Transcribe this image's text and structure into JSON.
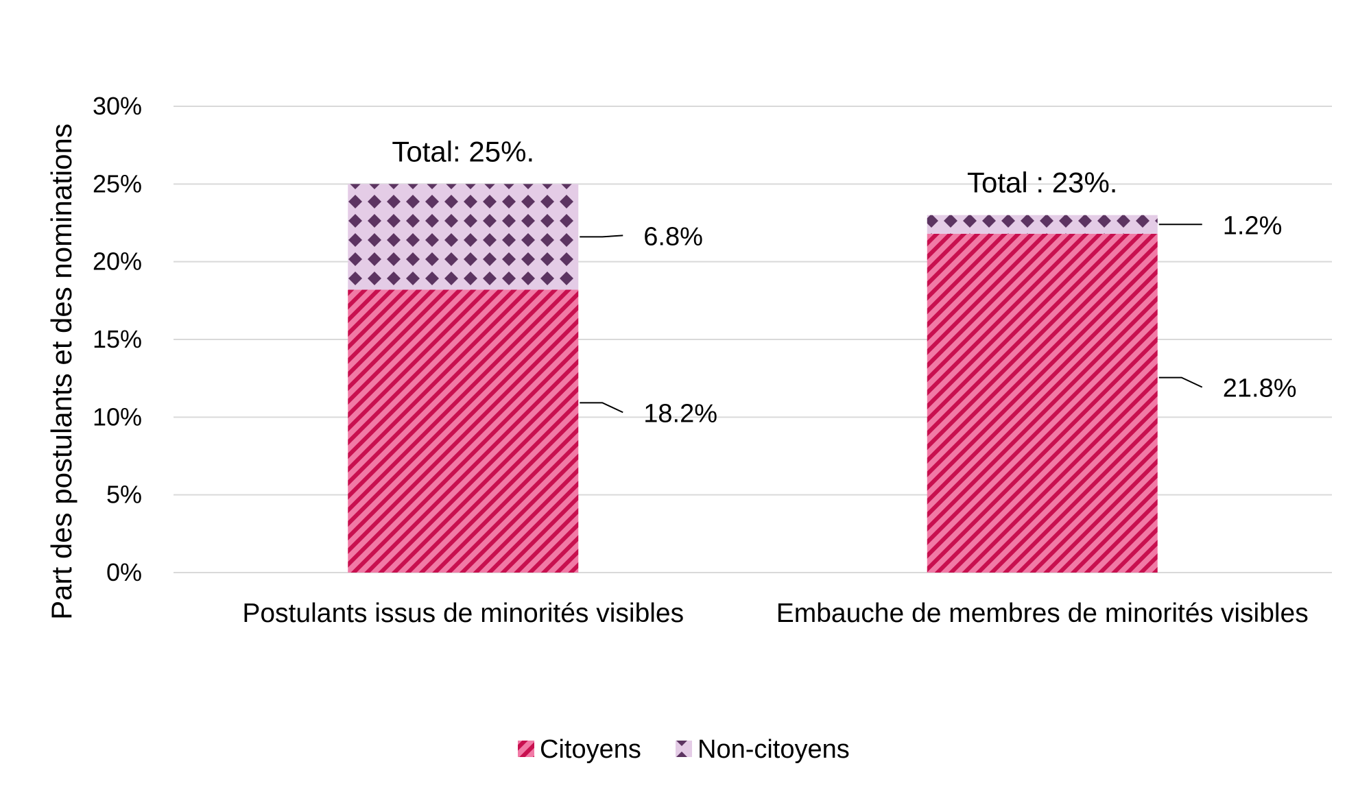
{
  "chart_data": {
    "type": "bar",
    "stacked": true,
    "categories": [
      "Postulants issus de minorités visibles",
      "Embauche de membres de minorités visibles"
    ],
    "series": [
      {
        "name": "Citoyens",
        "values": [
          18.2,
          21.8
        ],
        "labels": [
          "18.2%",
          "21.8%"
        ],
        "color": "#f17aa6",
        "pattern_color": "#c8104f",
        "pattern": "diagonal-stripes"
      },
      {
        "name": "Non-citoyens",
        "values": [
          6.8,
          1.2
        ],
        "labels": [
          "6.8%",
          "1.2%"
        ],
        "color": "#e4cce6",
        "pattern_color": "#5c3461",
        "pattern": "diamonds"
      }
    ],
    "totals": [
      "Total: 25%.",
      "Total : 23%."
    ],
    "ylabel": "Part des postulants et des nominations",
    "xlabel": "",
    "ylim": [
      0,
      30
    ],
    "yticks": [
      {
        "value": 0,
        "label": "0%"
      },
      {
        "value": 5,
        "label": "5%"
      },
      {
        "value": 10,
        "label": "10%"
      },
      {
        "value": 15,
        "label": "15%"
      },
      {
        "value": 20,
        "label": "20%"
      },
      {
        "value": 25,
        "label": "25%"
      },
      {
        "value": 30,
        "label": "30%"
      }
    ],
    "grid": true,
    "legend_position": "bottom"
  }
}
